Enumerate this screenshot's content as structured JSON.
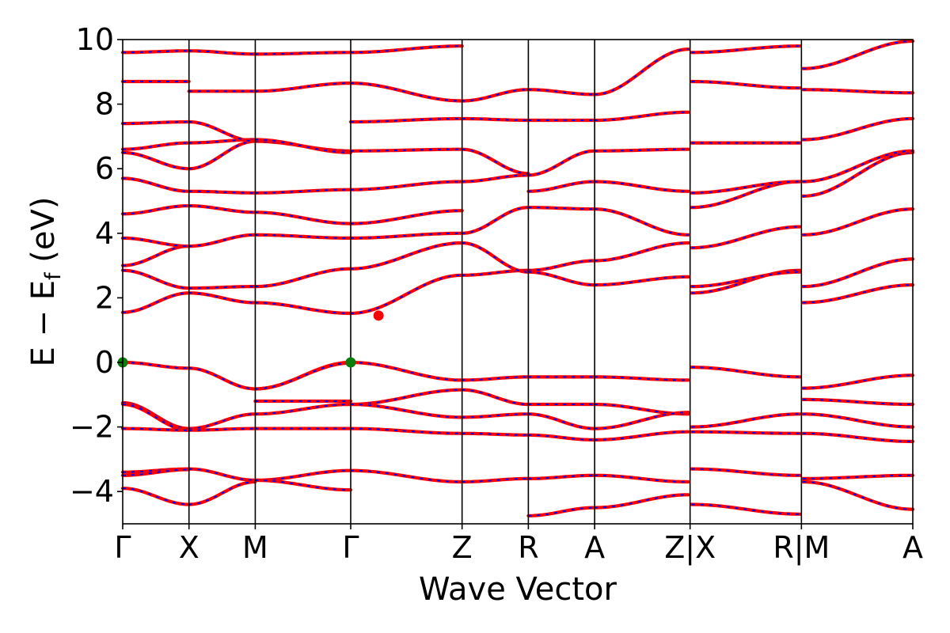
{
  "chart_data": {
    "type": "line",
    "xlabel": "Wave Vector",
    "ylabel": {
      "main": "E − E",
      "subscript": "f",
      "unit": "(eV)"
    },
    "ylim": [
      -5,
      10
    ],
    "yticks": [
      -4,
      -2,
      0,
      2,
      4,
      6,
      8,
      10
    ],
    "ytick_labels": [
      "−4",
      "−2",
      "0",
      "2",
      "4",
      "6",
      "8",
      "10"
    ],
    "grid": false,
    "legend": "none",
    "kpath": {
      "labels": [
        "Γ",
        "X",
        "M",
        "Γ",
        "Z",
        "R",
        "A",
        "Z|X",
        "R|M",
        "A"
      ],
      "positions": [
        0,
        0.5,
        1.0,
        1.72,
        2.56,
        3.06,
        3.56,
        4.28,
        5.12,
        5.96
      ],
      "segment_breaks": [
        4.28,
        5.12
      ]
    },
    "colors": {
      "spin_up": "#ff0000",
      "spin_down": "#0000ff",
      "vbm": "#0a7d0a",
      "cbm": "#ff0000"
    },
    "markers": {
      "vbm": [
        {
          "x": 0,
          "y": 0
        },
        {
          "x": 1.72,
          "y": 0
        }
      ],
      "cbm": [
        {
          "x": 1.93,
          "y": 1.45
        }
      ]
    },
    "bands_by_segment": [
      [
        [
          0,
          -0.18
        ],
        [
          -1.25,
          -2.05
        ],
        [
          -1.3,
          -2.1
        ],
        [
          -2.05,
          -2.1
        ],
        [
          -3.4,
          -3.3
        ],
        [
          -3.5,
          -3.32
        ],
        [
          -3.9,
          -4.4
        ],
        [
          1.55,
          2.15
        ],
        [
          2.85,
          2.3
        ],
        [
          3.0,
          3.6
        ],
        [
          3.85,
          3.6
        ],
        [
          4.6,
          4.85
        ],
        [
          5.7,
          5.3
        ],
        [
          6.5,
          6.0
        ],
        [
          6.6,
          6.8
        ],
        [
          7.4,
          7.45
        ],
        [
          8.7,
          8.7
        ],
        [
          9.6,
          9.65
        ]
      ],
      [
        [
          -0.18,
          -0.82
        ],
        [
          -2.05,
          -1.6
        ],
        [
          -2.1,
          -2.05
        ],
        [
          -3.3,
          -3.65
        ],
        [
          -4.4,
          -3.7
        ],
        [
          2.15,
          1.85
        ],
        [
          2.3,
          2.35
        ],
        [
          3.6,
          3.95
        ],
        [
          4.85,
          4.65
        ],
        [
          5.3,
          5.25
        ],
        [
          6.0,
          6.85
        ],
        [
          6.8,
          6.9
        ],
        [
          7.45,
          6.85
        ],
        [
          8.4,
          8.4
        ],
        [
          9.65,
          9.55
        ]
      ],
      [
        [
          -0.82,
          0
        ],
        [
          -0.82,
          -0.02
        ],
        [
          -1.2,
          -1.2
        ],
        [
          -1.6,
          -1.3
        ],
        [
          -2.05,
          -2.05
        ],
        [
          -3.65,
          -3.35
        ],
        [
          -3.65,
          -3.95
        ],
        [
          1.85,
          1.52
        ],
        [
          2.35,
          2.9
        ],
        [
          3.95,
          3.85
        ],
        [
          4.65,
          4.3
        ],
        [
          5.25,
          5.35
        ],
        [
          6.85,
          6.55
        ],
        [
          6.9,
          6.5
        ],
        [
          8.4,
          8.65
        ],
        [
          9.55,
          9.6
        ]
      ],
      [
        [
          0,
          -0.55
        ],
        [
          -1.3,
          -0.85
        ],
        [
          -1.3,
          -1.7
        ],
        [
          -2.05,
          -2.2
        ],
        [
          -3.35,
          -3.7
        ],
        [
          1.52,
          2.7
        ],
        [
          2.9,
          3.7
        ],
        [
          3.85,
          4.0
        ],
        [
          4.3,
          4.7
        ],
        [
          5.35,
          5.6
        ],
        [
          6.55,
          6.6
        ],
        [
          7.45,
          7.55
        ],
        [
          8.65,
          8.1
        ],
        [
          9.6,
          9.8
        ]
      ],
      [
        [
          -0.55,
          -0.45
        ],
        [
          -0.85,
          -1.3
        ],
        [
          -1.7,
          -1.6
        ],
        [
          -2.2,
          -2.25
        ],
        [
          -3.7,
          -3.6
        ],
        [
          2.7,
          2.85
        ],
        [
          3.7,
          2.8
        ],
        [
          4.0,
          4.8
        ],
        [
          5.6,
          5.8
        ],
        [
          6.6,
          5.85
        ],
        [
          7.55,
          7.5
        ],
        [
          8.1,
          8.45
        ]
      ],
      [
        [
          -0.45,
          -0.45
        ],
        [
          -1.3,
          -1.3
        ],
        [
          -1.6,
          -2.05
        ],
        [
          -2.25,
          -2.4
        ],
        [
          -3.6,
          -3.5
        ],
        [
          -4.75,
          -4.5
        ],
        [
          2.85,
          3.15
        ],
        [
          2.8,
          2.4
        ],
        [
          4.8,
          4.75
        ],
        [
          5.3,
          5.6
        ],
        [
          5.8,
          6.55
        ],
        [
          7.5,
          7.5
        ],
        [
          8.45,
          8.3
        ]
      ],
      [
        [
          -0.45,
          -0.55
        ],
        [
          -1.3,
          -1.6
        ],
        [
          -2.05,
          -1.55
        ],
        [
          -2.4,
          -2.15
        ],
        [
          -3.5,
          -3.7
        ],
        [
          -4.5,
          -4.1
        ],
        [
          3.15,
          3.7
        ],
        [
          2.4,
          2.65
        ],
        [
          4.75,
          3.95
        ],
        [
          5.6,
          5.3
        ],
        [
          6.55,
          6.6
        ],
        [
          7.5,
          7.75
        ],
        [
          8.3,
          9.7
        ]
      ],
      [
        [
          -0.15,
          -0.45
        ],
        [
          -2.0,
          -1.6
        ],
        [
          -2.15,
          -2.2
        ],
        [
          -3.3,
          -3.5
        ],
        [
          -4.4,
          -4.7
        ],
        [
          2.15,
          2.85
        ],
        [
          2.35,
          2.8
        ],
        [
          3.55,
          4.2
        ],
        [
          4.8,
          5.6
        ],
        [
          5.25,
          5.6
        ],
        [
          6.8,
          6.8
        ],
        [
          8.7,
          8.5
        ],
        [
          9.6,
          9.8
        ]
      ],
      [
        [
          -0.8,
          -0.4
        ],
        [
          -1.15,
          -1.3
        ],
        [
          -1.6,
          -2.0
        ],
        [
          -2.2,
          -2.45
        ],
        [
          -3.6,
          -3.5
        ],
        [
          -3.7,
          -4.55
        ],
        [
          1.85,
          2.4
        ],
        [
          2.35,
          3.2
        ],
        [
          3.95,
          4.75
        ],
        [
          5.15,
          6.5
        ],
        [
          5.6,
          6.55
        ],
        [
          6.9,
          7.55
        ],
        [
          8.45,
          8.35
        ],
        [
          9.1,
          9.95
        ]
      ]
    ]
  }
}
